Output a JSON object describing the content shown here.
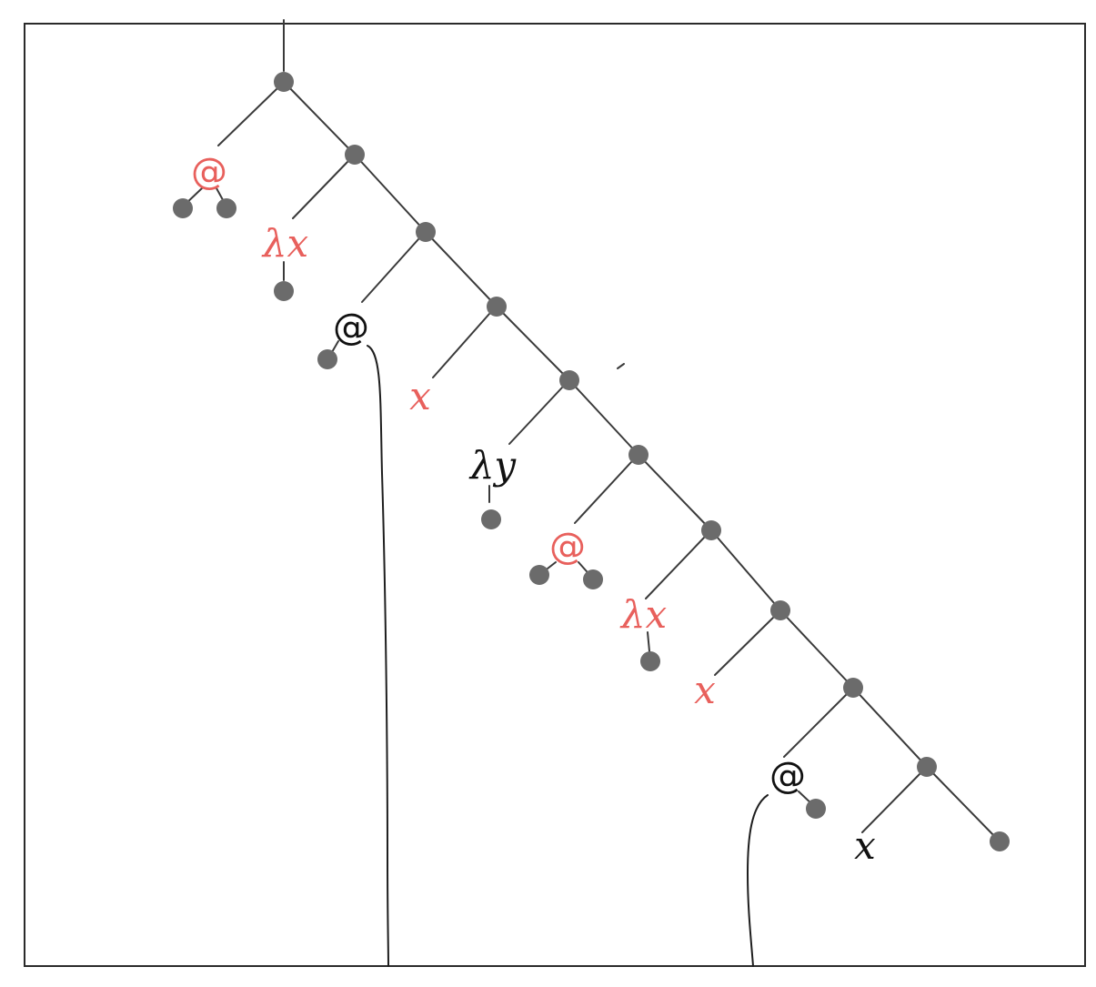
{
  "colors": {
    "highlight": "#e8605c",
    "ink": "#111111",
    "node": "#6b6b6b",
    "edge": "#3a3a3a"
  },
  "labels": {
    "app_1": "@",
    "lambda_x_1": "λx",
    "app_2": "@",
    "var_x_1": "x",
    "lambda_y": "λy",
    "app_3": "@",
    "lambda_x_2": "λx",
    "var_x_2": "x",
    "app_4": "@",
    "var_x_3": "x"
  }
}
